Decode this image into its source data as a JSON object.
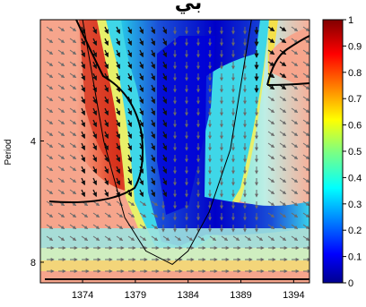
{
  "figure": {
    "title": "ﺑﻲ"
  },
  "chart_data": {
    "type": "heatmap",
    "title": "ﺑﻲ",
    "xlabel": "",
    "ylabel": "Period",
    "xlim": [
      1370,
      1395.5
    ],
    "ylim": [
      2,
      9
    ],
    "x_ticks": [
      1374,
      1379,
      1384,
      1389,
      1394
    ],
    "y_ticks": [
      4,
      8
    ],
    "colorbar": {
      "min": 0,
      "max": 1,
      "ticks": [
        0,
        0.1,
        0.2,
        0.3,
        0.4,
        0.5,
        0.6,
        0.7,
        0.8,
        0.9,
        1
      ],
      "colormap": "jet"
    },
    "cone_of_influence": [
      {
        "x": 1374.0,
        "period": 2.0
      },
      {
        "x": 1376.0,
        "period": 4.0
      },
      {
        "x": 1378.0,
        "period": 6.2
      },
      {
        "x": 1380.0,
        "period": 7.5
      },
      {
        "x": 1382.5,
        "period": 8.1
      },
      {
        "x": 1384.0,
        "period": 7.5
      },
      {
        "x": 1386.0,
        "period": 6.0
      },
      {
        "x": 1388.0,
        "period": 4.2
      },
      {
        "x": 1390.0,
        "period": 2.0
      }
    ],
    "significance_contours": [
      "left band 1374–1379 at periods 2–6",
      "right region 1390–1394 at periods 2–3"
    ],
    "colors": {
      "high": "#c71a10",
      "low": "#00008f",
      "background": "#f6a58c"
    }
  }
}
